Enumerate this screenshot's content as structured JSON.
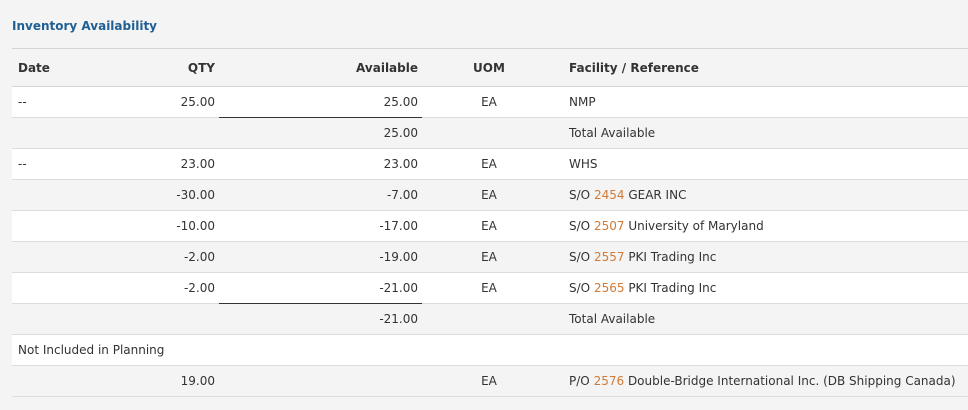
{
  "title": "Inventory Availability",
  "headers": {
    "date": "Date",
    "qty": "QTY",
    "available": "Available",
    "uom": "UOM",
    "facility": "Facility / Reference"
  },
  "rows": [
    {
      "date": "--",
      "qty": "25.00",
      "available": "25.00",
      "uom": "EA",
      "facility": "NMP",
      "ref_prefix": "",
      "ref_num": "",
      "ref_name": ""
    },
    {
      "date": "",
      "qty": "",
      "available": "25.00",
      "uom": "",
      "facility": "Total Available",
      "ref_prefix": "",
      "ref_num": "",
      "ref_name": ""
    },
    {
      "date": "--",
      "qty": "23.00",
      "available": "23.00",
      "uom": "EA",
      "facility": "WHS",
      "ref_prefix": "",
      "ref_num": "",
      "ref_name": ""
    },
    {
      "date": "",
      "qty": "-30.00",
      "available": "-7.00",
      "uom": "EA",
      "facility": "",
      "ref_prefix": "S/O",
      "ref_num": "2454",
      "ref_name": "GEAR INC"
    },
    {
      "date": "",
      "qty": "-10.00",
      "available": "-17.00",
      "uom": "EA",
      "facility": "",
      "ref_prefix": "S/O",
      "ref_num": "2507",
      "ref_name": "University of Maryland"
    },
    {
      "date": "",
      "qty": "-2.00",
      "available": "-19.00",
      "uom": "EA",
      "facility": "",
      "ref_prefix": "S/O",
      "ref_num": "2557",
      "ref_name": "PKI Trading Inc"
    },
    {
      "date": "",
      "qty": "-2.00",
      "available": "-21.00",
      "uom": "EA",
      "facility": "",
      "ref_prefix": "S/O",
      "ref_num": "2565",
      "ref_name": "PKI Trading Inc"
    },
    {
      "date": "",
      "qty": "",
      "available": "-21.00",
      "uom": "",
      "facility": "Total Available",
      "ref_prefix": "",
      "ref_num": "",
      "ref_name": ""
    },
    {
      "section_label": "Not Included in Planning"
    },
    {
      "date": "",
      "qty": "19.00",
      "available": "",
      "uom": "EA",
      "facility": "",
      "ref_prefix": "P/O",
      "ref_num": "2576",
      "ref_name": "Double-Bridge International Inc. (DB Shipping Canada)"
    }
  ],
  "colors": {
    "title": "#1f5f93",
    "reference_link": "#d27a35",
    "row_alt": "#f4f4f4",
    "row_white": "#ffffff"
  }
}
